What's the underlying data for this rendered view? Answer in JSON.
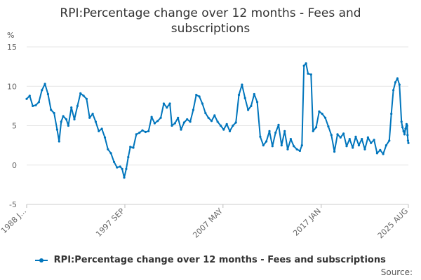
{
  "chart_data": {
    "type": "line",
    "title": "RPI:Percentage change over 12 months - Fees and subscriptions",
    "title_lines": [
      "RPI:Percentage change over 12 months - Fees and",
      "subscriptions"
    ],
    "ylabel": "%",
    "xlabel": "",
    "ylim": [
      -5,
      15
    ],
    "yticks": [
      -5,
      0,
      5,
      10,
      15
    ],
    "grid": true,
    "legend_position": "bottom",
    "source_label": "Source:",
    "colors": {
      "series": "#0075bc",
      "grid": "#e6e6e6",
      "text": "#666666"
    },
    "x_tick_labels": [
      {
        "label": "1988 J...",
        "t": 1988.0
      },
      {
        "label": "1997 SEP",
        "t": 1997.67
      },
      {
        "label": "2007 MAY",
        "t": 2007.33
      },
      {
        "label": "2017 JAN",
        "t": 2017.0
      },
      {
        "label": "2025 AUG",
        "t": 2025.58
      }
    ],
    "x_range": [
      1988.0,
      2025.58
    ],
    "series": [
      {
        "name": "RPI:Percentage change over 12 months - Fees and subscriptions",
        "points": [
          [
            1988.0,
            8.4
          ],
          [
            1988.3,
            8.8
          ],
          [
            1988.6,
            7.5
          ],
          [
            1988.9,
            7.6
          ],
          [
            1989.2,
            8.0
          ],
          [
            1989.5,
            9.5
          ],
          [
            1989.8,
            10.3
          ],
          [
            1990.1,
            9.0
          ],
          [
            1990.4,
            7.0
          ],
          [
            1990.7,
            6.6
          ],
          [
            1991.0,
            4.5
          ],
          [
            1991.2,
            3.0
          ],
          [
            1991.4,
            5.5
          ],
          [
            1991.6,
            6.2
          ],
          [
            1991.9,
            5.8
          ],
          [
            1992.1,
            5.0
          ],
          [
            1992.4,
            7.3
          ],
          [
            1992.7,
            5.8
          ],
          [
            1993.0,
            7.5
          ],
          [
            1993.3,
            9.1
          ],
          [
            1993.6,
            8.8
          ],
          [
            1993.9,
            8.4
          ],
          [
            1994.2,
            6.0
          ],
          [
            1994.5,
            6.5
          ],
          [
            1994.8,
            5.5
          ],
          [
            1995.1,
            4.3
          ],
          [
            1995.4,
            4.6
          ],
          [
            1995.7,
            3.5
          ],
          [
            1996.0,
            2.0
          ],
          [
            1996.3,
            1.5
          ],
          [
            1996.6,
            0.4
          ],
          [
            1996.9,
            -0.3
          ],
          [
            1997.2,
            -0.2
          ],
          [
            1997.4,
            -0.5
          ],
          [
            1997.6,
            -1.6
          ],
          [
            1997.8,
            -0.5
          ],
          [
            1998.0,
            1.0
          ],
          [
            1998.2,
            2.3
          ],
          [
            1998.5,
            2.2
          ],
          [
            1998.8,
            3.9
          ],
          [
            1999.1,
            4.1
          ],
          [
            1999.4,
            4.4
          ],
          [
            1999.7,
            4.2
          ],
          [
            2000.0,
            4.3
          ],
          [
            2000.3,
            6.1
          ],
          [
            2000.6,
            5.3
          ],
          [
            2000.9,
            5.6
          ],
          [
            2001.2,
            6.0
          ],
          [
            2001.5,
            7.8
          ],
          [
            2001.8,
            7.3
          ],
          [
            2002.1,
            7.8
          ],
          [
            2002.3,
            5.0
          ],
          [
            2002.6,
            5.3
          ],
          [
            2002.9,
            6.0
          ],
          [
            2003.2,
            4.5
          ],
          [
            2003.5,
            5.4
          ],
          [
            2003.8,
            5.8
          ],
          [
            2004.1,
            5.5
          ],
          [
            2004.4,
            7.0
          ],
          [
            2004.7,
            8.9
          ],
          [
            2005.0,
            8.7
          ],
          [
            2005.3,
            7.8
          ],
          [
            2005.6,
            6.6
          ],
          [
            2005.9,
            6.0
          ],
          [
            2006.2,
            5.6
          ],
          [
            2006.5,
            6.3
          ],
          [
            2006.8,
            5.5
          ],
          [
            2007.1,
            5.0
          ],
          [
            2007.4,
            4.5
          ],
          [
            2007.7,
            5.2
          ],
          [
            2008.0,
            4.3
          ],
          [
            2008.3,
            5.0
          ],
          [
            2008.6,
            5.4
          ],
          [
            2008.9,
            8.9
          ],
          [
            2009.2,
            10.2
          ],
          [
            2009.5,
            8.5
          ],
          [
            2009.8,
            7.0
          ],
          [
            2010.1,
            7.5
          ],
          [
            2010.4,
            9.0
          ],
          [
            2010.7,
            8.0
          ],
          [
            2011.0,
            3.6
          ],
          [
            2011.3,
            2.5
          ],
          [
            2011.6,
            3.0
          ],
          [
            2011.9,
            4.3
          ],
          [
            2012.2,
            2.4
          ],
          [
            2012.5,
            4.1
          ],
          [
            2012.8,
            5.1
          ],
          [
            2013.1,
            2.5
          ],
          [
            2013.4,
            4.3
          ],
          [
            2013.7,
            2.0
          ],
          [
            2014.0,
            3.3
          ],
          [
            2014.3,
            2.4
          ],
          [
            2014.6,
            2.0
          ],
          [
            2014.9,
            1.8
          ],
          [
            2015.1,
            2.5
          ],
          [
            2015.3,
            12.6
          ],
          [
            2015.5,
            12.9
          ],
          [
            2015.7,
            11.6
          ],
          [
            2016.0,
            11.5
          ],
          [
            2016.2,
            4.3
          ],
          [
            2016.5,
            4.8
          ],
          [
            2016.8,
            6.8
          ],
          [
            2017.1,
            6.5
          ],
          [
            2017.4,
            6.0
          ],
          [
            2017.7,
            4.9
          ],
          [
            2018.0,
            3.8
          ],
          [
            2018.3,
            1.7
          ],
          [
            2018.6,
            3.9
          ],
          [
            2018.9,
            3.5
          ],
          [
            2019.2,
            4.0
          ],
          [
            2019.5,
            2.4
          ],
          [
            2019.8,
            3.3
          ],
          [
            2020.1,
            2.2
          ],
          [
            2020.4,
            3.6
          ],
          [
            2020.7,
            2.5
          ],
          [
            2021.0,
            3.3
          ],
          [
            2021.3,
            2.0
          ],
          [
            2021.6,
            3.5
          ],
          [
            2021.9,
            2.8
          ],
          [
            2022.2,
            3.2
          ],
          [
            2022.5,
            1.5
          ],
          [
            2022.8,
            1.9
          ],
          [
            2023.1,
            1.4
          ],
          [
            2023.4,
            2.5
          ],
          [
            2023.7,
            3.1
          ],
          [
            2023.9,
            6.5
          ],
          [
            2024.1,
            9.5
          ],
          [
            2024.3,
            10.5
          ],
          [
            2024.5,
            11.0
          ],
          [
            2024.7,
            10.2
          ],
          [
            2024.9,
            5.5
          ],
          [
            2025.0,
            4.8
          ],
          [
            2025.1,
            4.3
          ],
          [
            2025.2,
            3.9
          ],
          [
            2025.3,
            4.6
          ],
          [
            2025.4,
            5.2
          ],
          [
            2025.46,
            5.0
          ],
          [
            2025.5,
            3.8
          ],
          [
            2025.54,
            3.1
          ],
          [
            2025.58,
            2.8
          ]
        ]
      }
    ]
  }
}
